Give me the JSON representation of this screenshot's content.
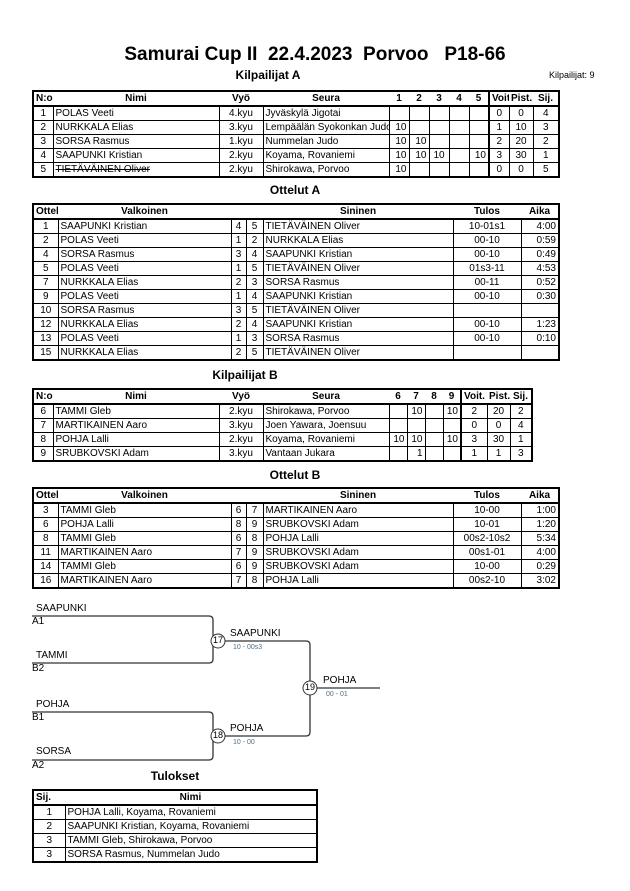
{
  "title": "Samurai Cup II  22.4.2023  Porvoo   P18-66",
  "competitor_count": "Kilpailijat: 9",
  "pool_a": {
    "title": "Kilpailijat A",
    "headers": [
      "N:o",
      "Nimi",
      "Vyö",
      "Seura",
      "1",
      "2",
      "3",
      "4",
      "5",
      "Voit.",
      "Pist.",
      "Sij."
    ],
    "rows": [
      [
        "1",
        "POLAS Veeti",
        "4.kyu",
        "Jyväskylä Jigotai",
        "",
        "",
        "",
        "",
        "",
        "0",
        "0",
        "4"
      ],
      [
        "2",
        "NURKKALA Elias",
        "3.kyu",
        "Lempäälän Syokonkan Judo",
        "10",
        "",
        "",
        "",
        "",
        "1",
        "10",
        "3"
      ],
      [
        "3",
        "SORSA Rasmus",
        "1.kyu",
        "Nummelan Judo",
        "10",
        "10",
        "",
        "",
        "",
        "2",
        "20",
        "2"
      ],
      [
        "4",
        "SAAPUNKI Kristian",
        "2.kyu",
        "Koyama, Rovaniemi",
        "10",
        "10",
        "10",
        "",
        "10",
        "3",
        "30",
        "1"
      ],
      [
        "5",
        "TIETÄVÄINEN Oliver",
        "2.kyu",
        "Shirokawa, Porvoo",
        "10",
        "",
        "",
        "",
        "",
        "0",
        "0",
        "5"
      ]
    ],
    "withdrawn_row": 4
  },
  "matches_a": {
    "title": "Ottelut A",
    "headers": [
      "Ottelu",
      "Valkoinen",
      "",
      "",
      "Sininen",
      "Tulos",
      "Aika"
    ],
    "rows": [
      [
        "1",
        "SAAPUNKI Kristian",
        "4",
        "5",
        "TIETÄVÄINEN Oliver",
        "10-01s1",
        "4:00"
      ],
      [
        "2",
        "POLAS Veeti",
        "1",
        "2",
        "NURKKALA Elias",
        "00-10",
        "0:59"
      ],
      [
        "4",
        "SORSA Rasmus",
        "3",
        "4",
        "SAAPUNKI Kristian",
        "00-10",
        "0:49"
      ],
      [
        "5",
        "POLAS Veeti",
        "1",
        "5",
        "TIETÄVÄINEN Oliver",
        "01s3-11",
        "4:53"
      ],
      [
        "7",
        "NURKKALA Elias",
        "2",
        "3",
        "SORSA Rasmus",
        "00-11",
        "0:52"
      ],
      [
        "9",
        "POLAS Veeti",
        "1",
        "4",
        "SAAPUNKI Kristian",
        "00-10",
        "0:30"
      ],
      [
        "10",
        "SORSA Rasmus",
        "3",
        "5",
        "TIETÄVÄINEN Oliver",
        "",
        ""
      ],
      [
        "12",
        "NURKKALA Elias",
        "2",
        "4",
        "SAAPUNKI Kristian",
        "00-10",
        "1:23"
      ],
      [
        "13",
        "POLAS Veeti",
        "1",
        "3",
        "SORSA Rasmus",
        "00-10",
        "0:10"
      ],
      [
        "15",
        "NURKKALA Elias",
        "2",
        "5",
        "TIETÄVÄINEN Oliver",
        "",
        ""
      ]
    ]
  },
  "pool_b": {
    "title": "Kilpailijat B",
    "headers": [
      "N:o",
      "Nimi",
      "Vyö",
      "Seura",
      "6",
      "7",
      "8",
      "9",
      "Voit.",
      "Pist.",
      "Sij."
    ],
    "rows": [
      [
        "6",
        "TAMMI Gleb",
        "2.kyu",
        "Shirokawa, Porvoo",
        "",
        "10",
        "",
        "10",
        "2",
        "20",
        "2"
      ],
      [
        "7",
        "MARTIKAINEN Aaro",
        "3.kyu",
        "Joen Yawara, Joensuu",
        "",
        "",
        "",
        "",
        "0",
        "0",
        "4"
      ],
      [
        "8",
        "POHJA Lalli",
        "2.kyu",
        "Koyama, Rovaniemi",
        "10",
        "10",
        "",
        "10",
        "3",
        "30",
        "1"
      ],
      [
        "9",
        "SRUBKOVSKI Adam",
        "3.kyu",
        "Vantaan Jukara",
        "",
        "1",
        "",
        "",
        "1",
        "1",
        "3"
      ]
    ]
  },
  "matches_b": {
    "title": "Ottelut B",
    "headers": [
      "Ottelu",
      "Valkoinen",
      "",
      "",
      "Sininen",
      "Tulos",
      "Aika"
    ],
    "rows": [
      [
        "3",
        "TAMMI Gleb",
        "6",
        "7",
        "MARTIKAINEN Aaro",
        "10-00",
        "1:00"
      ],
      [
        "6",
        "POHJA Lalli",
        "8",
        "9",
        "SRUBKOVSKI Adam",
        "10-01",
        "1:20"
      ],
      [
        "8",
        "TAMMI Gleb",
        "6",
        "8",
        "POHJA Lalli",
        "00s2-10s2",
        "5:34"
      ],
      [
        "11",
        "MARTIKAINEN Aaro",
        "7",
        "9",
        "SRUBKOVSKI Adam",
        "00s1-01",
        "4:00"
      ],
      [
        "14",
        "TAMMI Gleb",
        "6",
        "9",
        "SRUBKOVSKI Adam",
        "10-00",
        "0:29"
      ],
      [
        "16",
        "MARTIKAINEN Aaro",
        "7",
        "8",
        "POHJA Lalli",
        "00s2-10",
        "3:02"
      ]
    ]
  },
  "bracket": {
    "s1_top": {
      "name": "SAAPUNKI",
      "seed": "A1"
    },
    "s1_bot": {
      "name": "TAMMI",
      "seed": "B2"
    },
    "s2_top": {
      "name": "POHJA",
      "seed": "B1"
    },
    "s2_bot": {
      "name": "SORSA",
      "seed": "A2"
    },
    "m17": {
      "no": "17",
      "winner": "SAAPUNKI",
      "score": "10 - 00s3"
    },
    "m18": {
      "no": "18",
      "winner": "POHJA",
      "score": "10 - 00"
    },
    "m19": {
      "no": "19",
      "winner": "POHJA",
      "score": "00 - 01"
    },
    "score_color": "#4f6f86"
  },
  "results": {
    "title": "Tulokset",
    "headers": [
      "Sij.",
      "Nimi"
    ],
    "rows": [
      [
        "1",
        "POHJA Lalli, Koyama, Rovaniemi"
      ],
      [
        "2",
        "SAAPUNKI Kristian, Koyama, Rovaniemi"
      ],
      [
        "3",
        "TAMMI Gleb, Shirokawa, Porvoo"
      ],
      [
        "3",
        "SORSA Rasmus, Nummelan Judo"
      ]
    ]
  }
}
